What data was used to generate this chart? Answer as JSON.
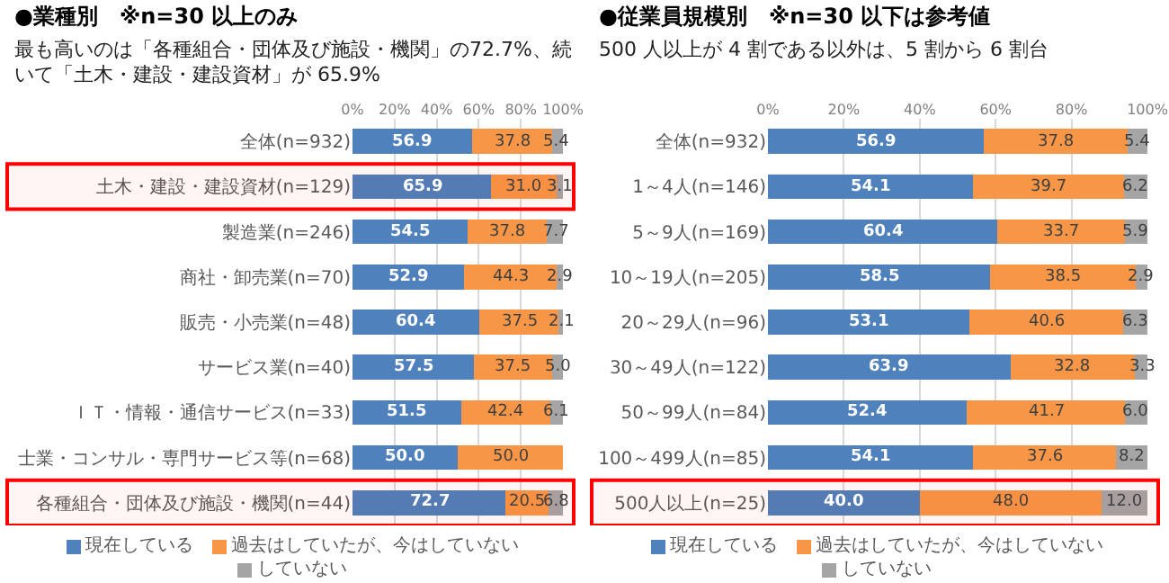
{
  "chart_data": [
    {
      "type": "bar",
      "orientation": "horizontal",
      "stacked": true,
      "title": "●業種別　※n=30 以上のみ",
      "subtitle": "最も高いのは「各種組合・団体及び施設・機関」の72.7%、続いて「土木・建設・建設資材」が 65.9%",
      "categories": [
        "全体(n=932)",
        "土木・建設・建設資材(n=129)",
        "製造業(n=246)",
        "商社・卸売業(n=70)",
        "販売・小売業(n=48)",
        "サービス業(n=40)",
        "ＩＴ・情報・通信サービス(n=33)",
        "士業・コンサル・専門サービス等(n=68)",
        "各種組合・団体及び施設・機関(n=44)"
      ],
      "series": [
        {
          "name": "現在している",
          "color": "#4f81bd",
          "values": [
            56.9,
            65.9,
            54.5,
            52.9,
            60.4,
            57.5,
            51.5,
            50.0,
            72.7
          ],
          "value_labels": [
            "56.9",
            "65.9",
            "54.5",
            "52.9",
            "60.4",
            "57.5",
            "51.5",
            "50.0",
            "72.7"
          ]
        },
        {
          "name": "過去はしていたが、今はしていない",
          "color": "#f79646",
          "values": [
            37.8,
            31.0,
            37.8,
            44.3,
            37.5,
            37.5,
            42.4,
            50.0,
            20.5
          ],
          "value_labels": [
            "37.8",
            "31.0",
            "37.8",
            "44.3",
            "37.5",
            "37.5",
            "42.4",
            "50.0",
            "20.5"
          ]
        },
        {
          "name": "していない",
          "color": "#a5a5a5",
          "values": [
            5.4,
            3.1,
            7.7,
            2.9,
            2.1,
            5.0,
            6.1,
            null,
            6.8
          ],
          "value_labels": [
            "5.4",
            "3.1",
            "7.7",
            "2.9",
            "2.1",
            "5.0",
            "6.1",
            null,
            "6.8"
          ]
        }
      ],
      "xlim": [
        0,
        100
      ],
      "xticks": [
        {
          "value": 0,
          "label": "0%"
        },
        {
          "value": 20,
          "label": "20%"
        },
        {
          "value": 40,
          "label": "40%"
        },
        {
          "value": 60,
          "label": "60%"
        },
        {
          "value": 80,
          "label": "80%"
        },
        {
          "value": 100,
          "label": "100%"
        }
      ],
      "bands": [
        {
          "axis": "y",
          "from": "土木・建設・建設資材(n=129)",
          "to": "土木・建設・建設資材(n=129)",
          "color": "#ff0000"
        },
        {
          "axis": "y",
          "from": "各種組合・団体及び施設・機関(n=44)",
          "to": "各種組合・団体及び施設・機関(n=44)",
          "color": "#ff0000"
        }
      ],
      "grid": "x",
      "legend": "bottom"
    },
    {
      "type": "bar",
      "orientation": "horizontal",
      "stacked": true,
      "title": "●従業員規模別　※n=30 以下は参考値",
      "subtitle": "500 人以上が 4 割である以外は、5 割から 6 割台",
      "categories": [
        "全体(n=932)",
        "1～4人(n=146)",
        "5～9人(n=169)",
        "10～19人(n=205)",
        "20～29人(n=96)",
        "30～49人(n=122)",
        "50～99人(n=84)",
        "100～499人(n=85)",
        "500人以上(n=25)"
      ],
      "series": [
        {
          "name": "現在している",
          "color": "#4f81bd",
          "values": [
            56.9,
            54.1,
            60.4,
            58.5,
            53.1,
            63.9,
            52.4,
            54.1,
            40.0
          ],
          "value_labels": [
            "56.9",
            "54.1",
            "60.4",
            "58.5",
            "53.1",
            "63.9",
            "52.4",
            "54.1",
            "40.0"
          ]
        },
        {
          "name": "過去はしていたが、今はしていない",
          "color": "#f79646",
          "values": [
            37.8,
            39.7,
            33.7,
            38.5,
            40.6,
            32.8,
            41.7,
            37.6,
            48.0
          ],
          "value_labels": [
            "37.8",
            "39.7",
            "33.7",
            "38.5",
            "40.6",
            "32.8",
            "41.7",
            "37.6",
            "48.0"
          ]
        },
        {
          "name": "していない",
          "color": "#a5a5a5",
          "values": [
            5.4,
            6.2,
            5.9,
            2.9,
            6.3,
            3.3,
            6.0,
            8.2,
            12.0
          ],
          "value_labels": [
            "5.4",
            "6.2",
            "5.9",
            "2.9",
            "6.3",
            "3.3",
            "6.0",
            "8.2",
            "12.0"
          ]
        }
      ],
      "xlim": [
        0,
        100
      ],
      "xticks": [
        {
          "value": 0,
          "label": "0%"
        },
        {
          "value": 20,
          "label": "20%"
        },
        {
          "value": 40,
          "label": "40%"
        },
        {
          "value": 60,
          "label": "60%"
        },
        {
          "value": 80,
          "label": "80%"
        },
        {
          "value": 100,
          "label": "100%"
        }
      ],
      "bands": [
        {
          "axis": "y",
          "from": "500人以上(n=25)",
          "to": "500人以上(n=25)",
          "color": "#ff0000"
        }
      ],
      "grid": "x",
      "legend": "bottom"
    }
  ]
}
